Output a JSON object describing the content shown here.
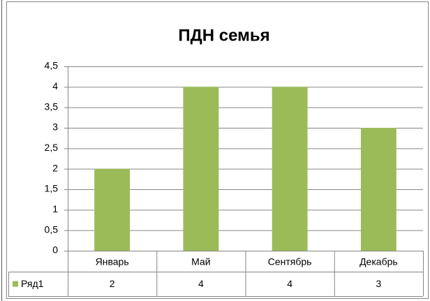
{
  "chart_data": {
    "type": "bar",
    "title": "ПДН семья",
    "categories": [
      "Январь",
      "Май",
      "Сентябрь",
      "Декабрь"
    ],
    "series": [
      {
        "name": "Ряд1",
        "color": "#9bbb59",
        "values": [
          2,
          4,
          4,
          3
        ]
      }
    ],
    "ylim": [
      0,
      4.5
    ],
    "yticks": [
      0,
      {
        "value": 0.5,
        "label": "0,5"
      },
      1,
      {
        "value": 1.5,
        "label": "1,5"
      },
      2,
      {
        "value": 2.5,
        "label": "2,5"
      },
      3,
      {
        "value": 3.5,
        "label": "3,5"
      },
      4,
      {
        "value": 4.5,
        "label": "4,5"
      }
    ],
    "grid": true,
    "data_table": true
  }
}
